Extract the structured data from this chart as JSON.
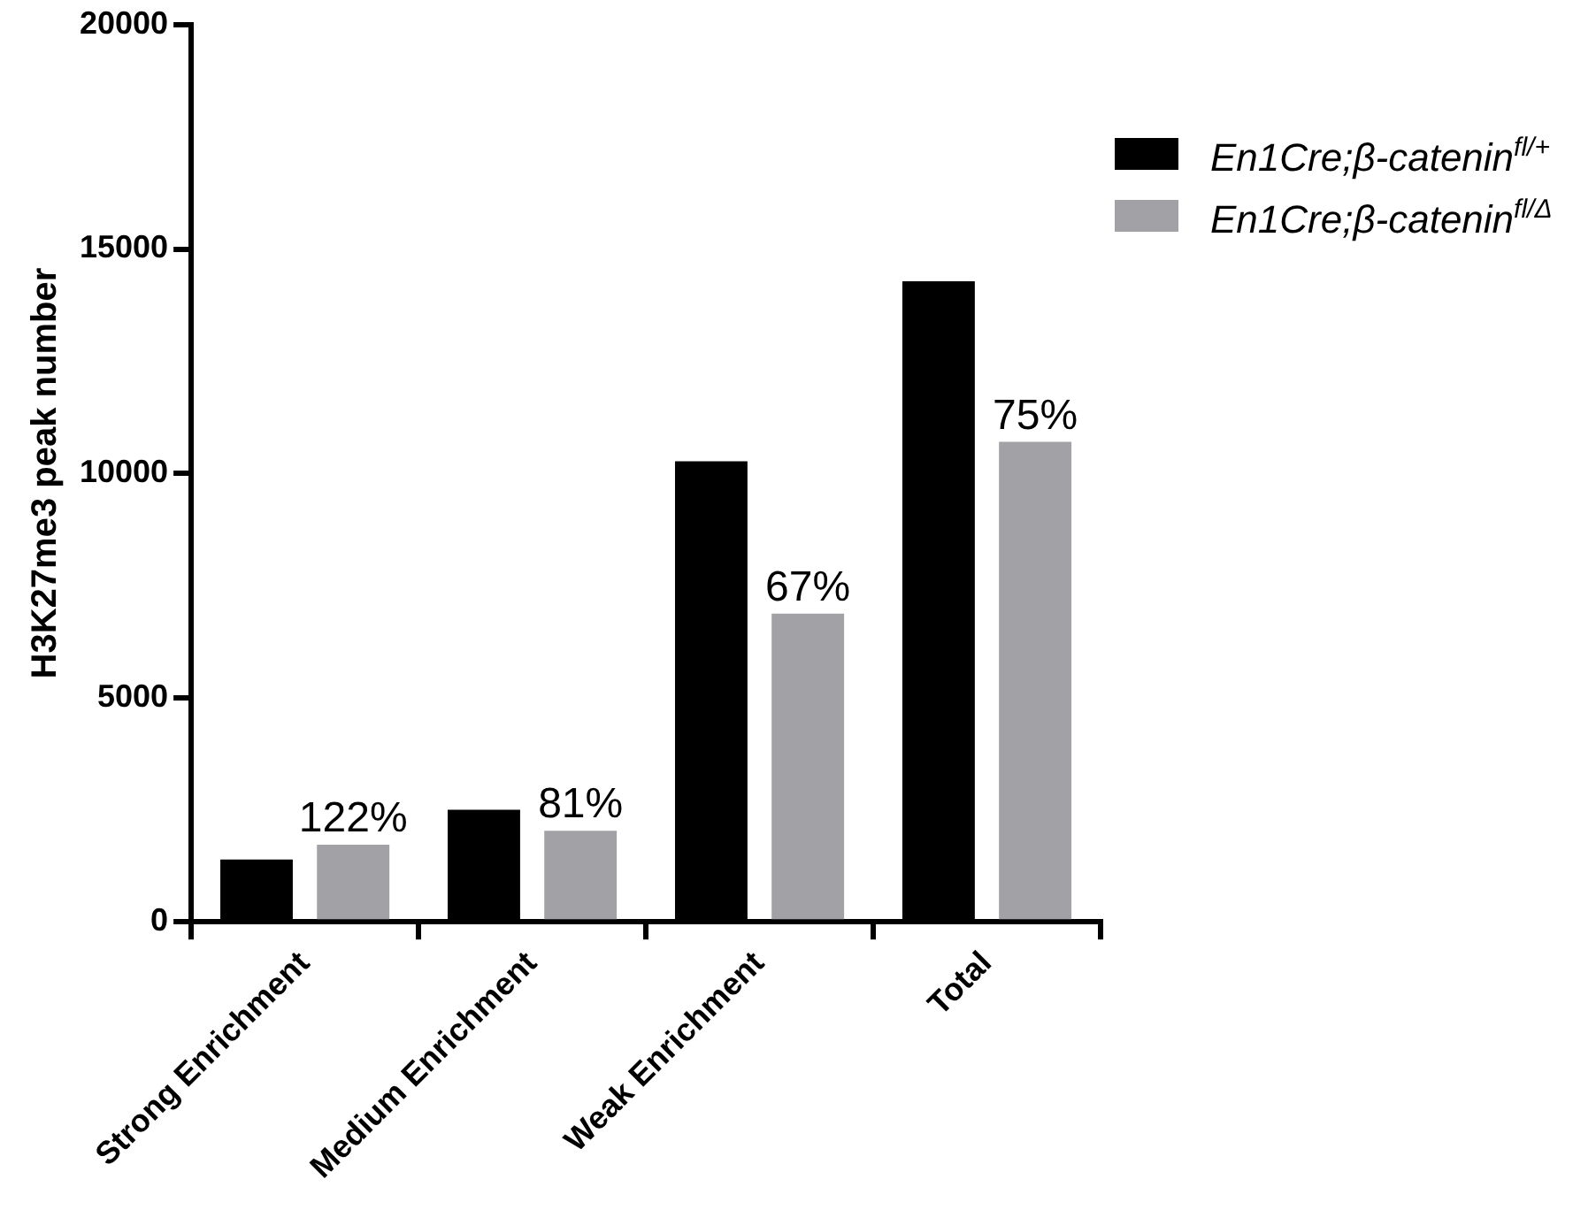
{
  "chart_data": {
    "type": "bar",
    "ylabel": "H3K27me3 peak number",
    "categories": [
      "Strong Enrichment",
      "Medium Enrichment",
      "Weak Enrichment",
      "Total"
    ],
    "series": [
      {
        "name": "En1Cre;β-catenin$^{fl/+}$",
        "color": "#000000",
        "values": [
          1390,
          2500,
          10270,
          14280
        ]
      },
      {
        "name": "En1Cre;β-catenin$^{fl/Δ}$",
        "color": "#a2a1a6",
        "values": [
          1720,
          2030,
          6870,
          10700
        ]
      }
    ],
    "annotations": [
      "122%",
      "81%",
      "67%",
      "75%"
    ],
    "ylim": [
      0,
      20000
    ],
    "yticks": [
      0,
      5000,
      10000,
      15000,
      20000
    ],
    "grid": false,
    "legend": "top right"
  }
}
